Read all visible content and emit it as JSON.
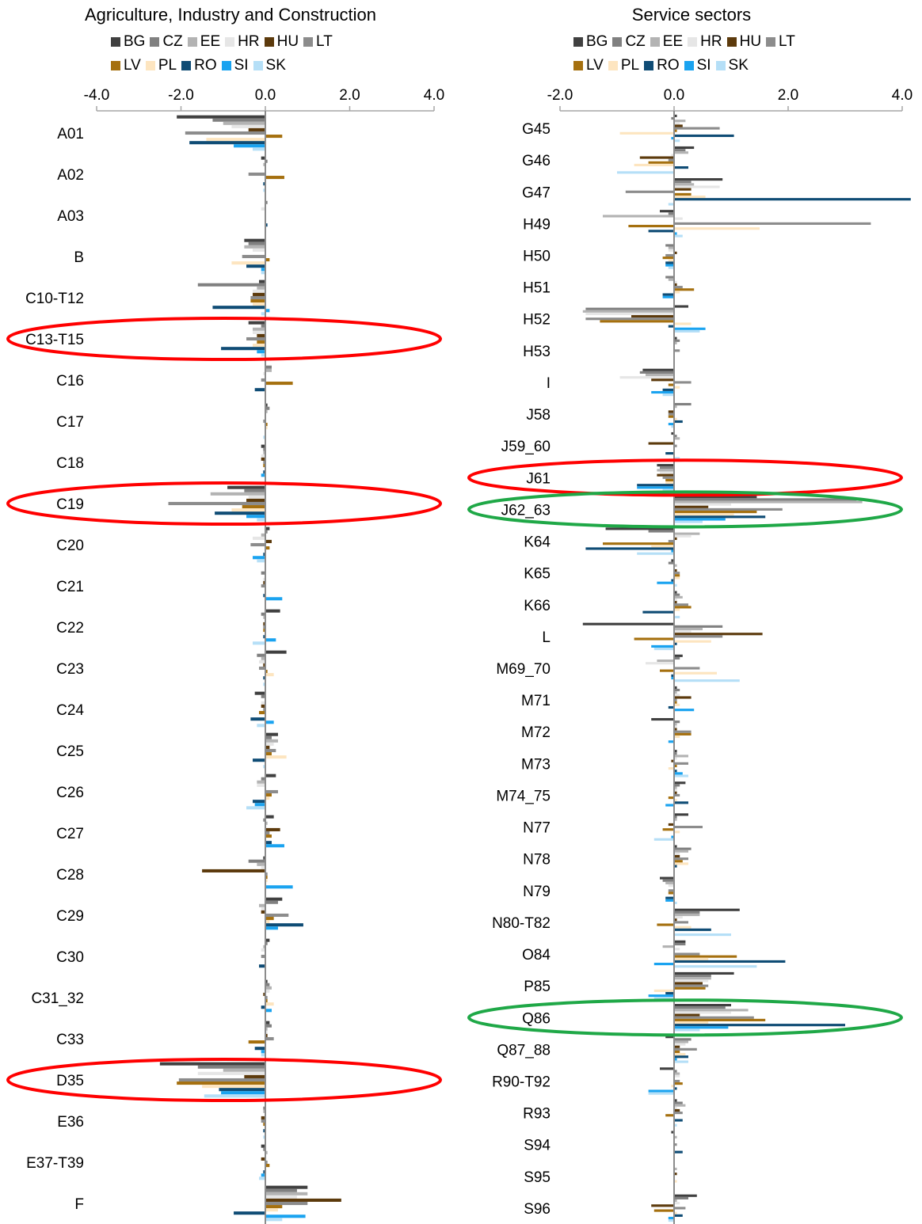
{
  "chart_data": [
    {
      "type": "bar",
      "orientation": "horizontal",
      "title": "Agriculture, Industry and Construction",
      "xlim": [
        -4.0,
        4.0
      ],
      "xticks": [
        "-4.0",
        "-2.0",
        "0.0",
        "2.0",
        "4.0"
      ],
      "legend_position": "top",
      "categories": [
        "A01",
        "A02",
        "A03",
        "B",
        "C10-T12",
        "C13-T15",
        "C16",
        "C17",
        "C18",
        "C19",
        "C20",
        "C21",
        "C22",
        "C23",
        "C24",
        "C25",
        "C26",
        "C27",
        "C28",
        "C29",
        "C30",
        "C31_32",
        "C33",
        "D35",
        "E36",
        "E37-T39",
        "F"
      ],
      "series": [
        {
          "name": "BG",
          "color": "#404040",
          "values": [
            -2.1,
            -0.1,
            0.0,
            -0.5,
            -0.15,
            -0.4,
            0.0,
            0.05,
            -0.1,
            -0.9,
            0.1,
            0.0,
            0.35,
            0.5,
            -0.25,
            0.3,
            0.25,
            0.2,
            -0.05,
            0.4,
            0.1,
            0.05,
            0.1,
            -2.5,
            0.0,
            -0.1,
            1.0
          ]
        },
        {
          "name": "CZ",
          "color": "#808080",
          "values": [
            -1.25,
            0.05,
            0.05,
            -0.4,
            -1.6,
            -0.1,
            0.15,
            0.1,
            -0.05,
            -0.5,
            0.05,
            -0.1,
            -0.1,
            -0.2,
            -0.1,
            0.15,
            -0.1,
            -0.05,
            -0.4,
            0.3,
            0.05,
            0.1,
            0.15,
            -1.6,
            -0.05,
            -0.05,
            0.75
          ]
        },
        {
          "name": "EE",
          "color": "#b3b3b3",
          "values": [
            -1.0,
            -0.05,
            0.0,
            -0.5,
            -0.2,
            -0.3,
            0.15,
            0.05,
            -0.05,
            -1.3,
            -0.1,
            0.0,
            -0.05,
            -0.1,
            0.0,
            0.3,
            -0.2,
            0.05,
            -0.2,
            -0.15,
            -0.05,
            0.15,
            0.05,
            -1.0,
            -0.05,
            0.05,
            1.0
          ]
        },
        {
          "name": "HR",
          "color": "#e6e6e6",
          "values": [
            -0.8,
            0.0,
            -0.1,
            -0.3,
            -0.3,
            -0.3,
            -0.05,
            0.0,
            -0.1,
            -0.4,
            -0.3,
            -0.05,
            0.0,
            -0.15,
            -0.1,
            0.2,
            -0.2,
            0.0,
            -0.1,
            -0.1,
            -0.1,
            0.1,
            0.05,
            -1.6,
            0.0,
            0.0,
            0.75
          ]
        },
        {
          "name": "HU",
          "color": "#5c3a0c",
          "values": [
            -0.4,
            0.0,
            0.0,
            0.0,
            -0.3,
            -0.2,
            0.0,
            0.0,
            -0.1,
            -0.45,
            0.15,
            -0.05,
            -0.05,
            -0.05,
            -0.1,
            0.1,
            0.0,
            0.35,
            -1.5,
            -0.1,
            0.0,
            -0.05,
            0.05,
            -0.5,
            -0.1,
            -0.1,
            1.8
          ]
        },
        {
          "name": "LT",
          "color": "#8c8c8c",
          "values": [
            -1.9,
            -0.4,
            0.0,
            -0.55,
            -0.35,
            -0.45,
            -0.1,
            -0.05,
            -0.05,
            -2.3,
            -0.35,
            -0.1,
            -0.05,
            -0.15,
            -0.05,
            0.25,
            0.3,
            0.1,
            0.05,
            0.55,
            -0.1,
            0.05,
            0.2,
            -2.05,
            -0.1,
            0.05,
            1.0
          ]
        },
        {
          "name": "LV",
          "color": "#a5700f",
          "values": [
            0.4,
            0.45,
            0.0,
            0.1,
            -0.35,
            -0.2,
            0.65,
            0.05,
            -0.05,
            -0.55,
            0.1,
            0.0,
            -0.05,
            0.05,
            -0.15,
            0.15,
            0.15,
            0.15,
            0.05,
            0.2,
            0.0,
            0.05,
            -0.4,
            -2.1,
            -0.05,
            0.1,
            0.4
          ]
        },
        {
          "name": "PL",
          "color": "#fde5c0",
          "values": [
            -1.4,
            0.0,
            0.0,
            -0.8,
            -0.3,
            -0.3,
            0.0,
            0.05,
            0.0,
            -0.8,
            0.0,
            0.0,
            0.0,
            0.2,
            0.0,
            0.5,
            0.1,
            0.0,
            0.05,
            0.1,
            0.0,
            0.2,
            0.0,
            -1.5,
            0.0,
            0.0,
            0.3
          ]
        },
        {
          "name": "RO",
          "color": "#0f4c75",
          "values": [
            -1.8,
            -0.05,
            0.05,
            -0.45,
            -1.25,
            -1.05,
            -0.25,
            0.0,
            -0.05,
            -1.2,
            -0.05,
            -0.05,
            -0.05,
            -0.05,
            -0.35,
            -0.3,
            -0.3,
            0.15,
            0.0,
            0.9,
            -0.15,
            -0.1,
            -0.25,
            -1.1,
            -0.05,
            -0.05,
            -0.75
          ]
        },
        {
          "name": "SI",
          "color": "#1aa3f0",
          "values": [
            -0.75,
            0.0,
            0.0,
            -0.1,
            0.1,
            -0.2,
            0.0,
            0.0,
            -0.1,
            -0.45,
            -0.3,
            0.4,
            0.25,
            0.0,
            0.2,
            0.0,
            -0.25,
            0.45,
            0.65,
            0.3,
            0.0,
            0.15,
            -0.1,
            -1.05,
            0.0,
            -0.1,
            0.95
          ]
        },
        {
          "name": "SK",
          "color": "#b5dff7",
          "values": [
            -0.3,
            -0.05,
            0.0,
            -0.1,
            -0.1,
            -0.1,
            0.0,
            -0.05,
            0.0,
            -0.2,
            -0.2,
            0.0,
            -0.3,
            -0.05,
            -0.2,
            -0.05,
            -0.45,
            0.0,
            0.0,
            0.0,
            0.0,
            0.0,
            -0.1,
            -1.45,
            -0.05,
            -0.15,
            0.4
          ]
        }
      ]
    },
    {
      "type": "bar",
      "orientation": "horizontal",
      "title": "Service sectors",
      "xlim": [
        -2.0,
        4.0
      ],
      "xticks": [
        "-2.0",
        "0.0",
        "2.0",
        "4.0"
      ],
      "legend_position": "top",
      "categories": [
        "G45",
        "G46",
        "G47",
        "H49",
        "H50",
        "H51",
        "H52",
        "H53",
        "I",
        "J58",
        "J59_60",
        "J61",
        "J62_63",
        "K64",
        "K65",
        "K66",
        "L",
        "M69_70",
        "M71",
        "M72",
        "M73",
        "M74_75",
        "N77",
        "N78",
        "N79",
        "N80-T82",
        "O84",
        "P85",
        "Q86",
        "Q87_88",
        "R90-T92",
        "R93",
        "S94",
        "S95",
        "S96"
      ],
      "series": [
        {
          "name": "BG",
          "color": "#404040",
          "values": [
            0.05,
            0.35,
            0.85,
            -0.25,
            0.0,
            0.0,
            0.25,
            0.05,
            -0.55,
            0.0,
            -0.05,
            -0.3,
            1.45,
            -1.2,
            -0.05,
            0.05,
            -1.6,
            0.15,
            0.05,
            -0.4,
            0.05,
            0.2,
            0.25,
            0.05,
            -0.25,
            1.15,
            0.2,
            1.05,
            1.0,
            -0.15,
            -0.25,
            0.05,
            -0.05,
            0.0,
            0.4
          ]
        },
        {
          "name": "CZ",
          "color": "#808080",
          "values": [
            -0.05,
            0.2,
            0.3,
            -0.1,
            -0.15,
            -0.15,
            -1.55,
            0.1,
            -0.6,
            0.3,
            0.05,
            -0.25,
            3.2,
            -0.45,
            -0.1,
            0.1,
            0.85,
            0.1,
            0.1,
            0.1,
            0.05,
            0.1,
            0.05,
            0.3,
            -0.2,
            0.45,
            0.2,
            0.65,
            0.9,
            0.3,
            0.05,
            0.15,
            0.0,
            0.0,
            0.25
          ]
        },
        {
          "name": "EE",
          "color": "#b3b3b3",
          "values": [
            0.2,
            0.25,
            0.35,
            -1.25,
            -0.1,
            -0.1,
            -1.6,
            0.05,
            -0.5,
            0.05,
            0.1,
            -0.3,
            3.3,
            0.45,
            0.05,
            0.15,
            0.5,
            -0.3,
            0.05,
            0.05,
            0.25,
            0.05,
            0.05,
            0.25,
            -0.15,
            0.45,
            -0.2,
            0.65,
            1.3,
            0.25,
            0.1,
            0.2,
            0.05,
            0.05,
            0.05
          ]
        },
        {
          "name": "HR",
          "color": "#e6e6e6",
          "values": [
            0.1,
            -0.05,
            0.8,
            0.15,
            -0.1,
            0.05,
            -1.55,
            0.0,
            -0.95,
            0.0,
            0.0,
            -0.25,
            1.0,
            0.3,
            0.0,
            0.05,
            0.3,
            -0.5,
            0.1,
            0.05,
            0.05,
            0.05,
            0.0,
            0.1,
            -0.1,
            0.15,
            0.1,
            0.6,
            1.0,
            0.2,
            0.1,
            0.05,
            0.0,
            0.0,
            0.1
          ]
        },
        {
          "name": "HU",
          "color": "#5c3a0c",
          "values": [
            0.15,
            -0.6,
            0.3,
            0.0,
            0.05,
            0.05,
            -0.75,
            0.0,
            -0.4,
            -0.1,
            -0.45,
            -0.3,
            0.6,
            0.05,
            0.05,
            0.05,
            1.55,
            0.0,
            0.3,
            0.05,
            -0.05,
            0.05,
            -0.1,
            0.1,
            0.0,
            0.05,
            0.0,
            0.5,
            0.45,
            0.1,
            0.0,
            0.1,
            0.0,
            0.05,
            -0.4
          ]
        },
        {
          "name": "LT",
          "color": "#8c8c8c",
          "values": [
            0.8,
            -0.1,
            -0.85,
            3.45,
            -0.15,
            0.15,
            -1.55,
            0.1,
            0.3,
            -0.1,
            0.05,
            -0.2,
            1.9,
            -0.1,
            0.1,
            0.25,
            0.85,
            0.45,
            0.05,
            0.3,
            0.25,
            0.1,
            0.5,
            0.25,
            -0.1,
            0.25,
            0.45,
            0.6,
            1.4,
            0.4,
            0.1,
            0.15,
            0.05,
            0.0,
            0.2
          ]
        },
        {
          "name": "LV",
          "color": "#a5700f",
          "values": [
            0.05,
            -0.45,
            0.3,
            -0.8,
            -0.2,
            0.35,
            -1.3,
            0.0,
            -0.1,
            -0.1,
            0.0,
            -0.15,
            1.45,
            -1.25,
            0.1,
            0.3,
            -0.7,
            -0.25,
            0.05,
            0.3,
            0.05,
            -0.1,
            -0.2,
            0.15,
            -0.1,
            -0.3,
            1.1,
            0.55,
            1.6,
            0.1,
            0.15,
            -0.15,
            0.0,
            0.0,
            -0.35
          ]
        },
        {
          "name": "PL",
          "color": "#fde5c0",
          "values": [
            -0.95,
            -0.7,
            0.55,
            1.5,
            -0.1,
            0.1,
            0.3,
            0.0,
            0.1,
            0.05,
            0.0,
            -0.15,
            1.05,
            -0.4,
            0.1,
            0.1,
            0.65,
            0.75,
            0.1,
            0.1,
            -0.1,
            0.05,
            0.1,
            0.25,
            0.0,
            0.3,
            0.6,
            -0.35,
            0.6,
            0.2,
            -0.05,
            0.0,
            0.0,
            0.05,
            0.05
          ]
        },
        {
          "name": "RO",
          "color": "#0f4c75",
          "values": [
            1.05,
            0.25,
            4.15,
            -0.45,
            -0.15,
            -0.2,
            -0.1,
            0.0,
            -0.2,
            0.15,
            -0.15,
            -0.65,
            1.6,
            -1.55,
            -0.05,
            -0.55,
            0.05,
            -0.05,
            -0.1,
            0.0,
            0.05,
            0.25,
            0.0,
            0.05,
            -0.15,
            0.65,
            1.95,
            -0.15,
            3.0,
            0.25,
            0.05,
            0.15,
            0.15,
            0.0,
            0.15
          ]
        },
        {
          "name": "SI",
          "color": "#1aa3f0",
          "values": [
            -0.05,
            0.0,
            0.0,
            0.05,
            -0.15,
            -0.2,
            0.55,
            0.0,
            -0.4,
            -0.1,
            0.0,
            -0.65,
            0.9,
            -0.05,
            -0.3,
            0.0,
            -0.4,
            -0.05,
            0.35,
            -0.1,
            0.15,
            -0.15,
            -0.05,
            0.0,
            -0.15,
            0.0,
            -0.35,
            -0.45,
            0.95,
            0.05,
            -0.45,
            0.0,
            0.0,
            0.0,
            -0.1
          ]
        },
        {
          "name": "SK",
          "color": "#b5dff7",
          "values": [
            0.1,
            -1.0,
            -0.1,
            0.15,
            -0.1,
            0.0,
            0.45,
            0.0,
            -0.2,
            -0.05,
            0.1,
            -0.2,
            0.5,
            -0.65,
            0.05,
            0.1,
            -0.35,
            1.15,
            0.0,
            0.0,
            0.25,
            0.0,
            -0.35,
            0.0,
            0.05,
            1.0,
            1.45,
            -0.35,
            0.45,
            0.25,
            -0.45,
            0.05,
            0.0,
            0.0,
            -0.1
          ]
        }
      ]
    }
  ],
  "highlights": [
    {
      "chart": 0,
      "category": "C13-T15",
      "color": "#ff0000"
    },
    {
      "chart": 0,
      "category": "C19",
      "color": "#ff0000"
    },
    {
      "chart": 0,
      "category": "D35",
      "color": "#ff0000"
    },
    {
      "chart": 1,
      "category": "J61",
      "color": "#ff0000"
    },
    {
      "chart": 1,
      "category": "J62_63",
      "color": "#1fa847"
    },
    {
      "chart": 1,
      "category": "Q86",
      "color": "#1fa847"
    }
  ]
}
